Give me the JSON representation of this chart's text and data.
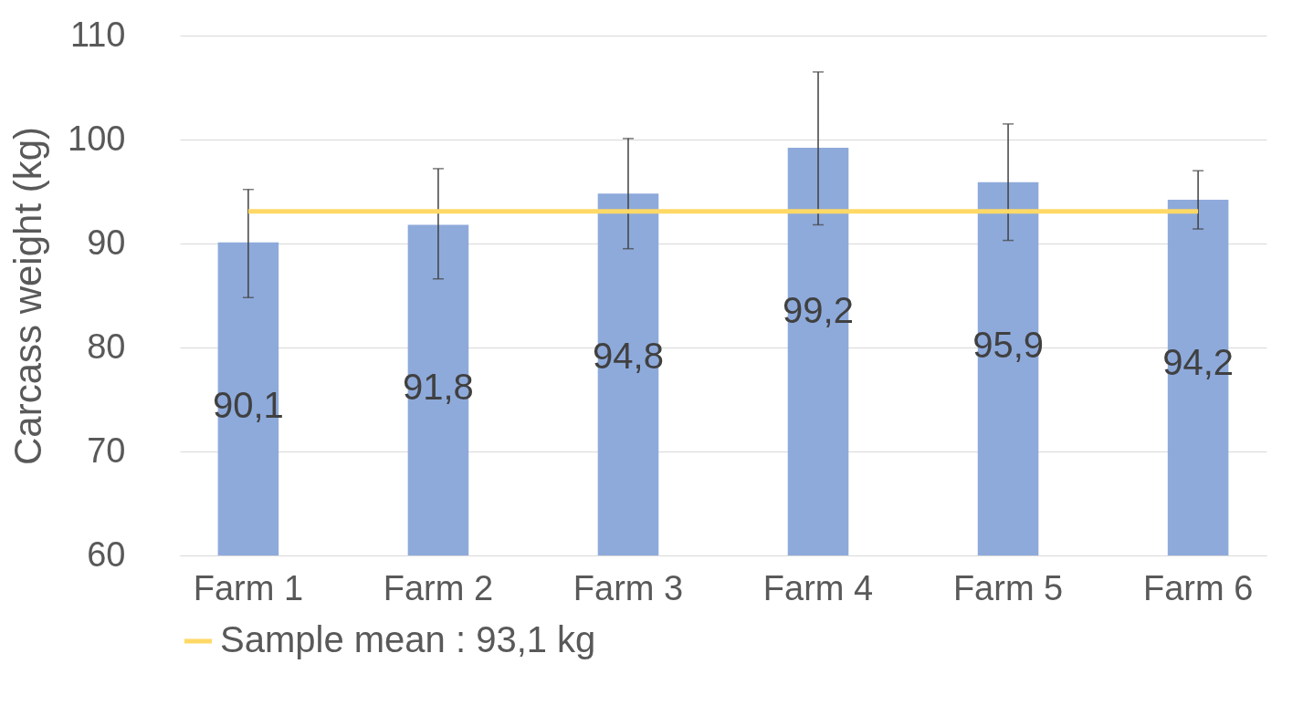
{
  "chart_data": {
    "type": "bar",
    "ylabel": "Carcass weight (kg)",
    "categories": [
      "Farm 1",
      "Farm 2",
      "Farm 3",
      "Farm 4",
      "Farm 5",
      "Farm 6"
    ],
    "series": [
      {
        "color": "#8eaadb",
        "values": [
          90.1,
          91.8,
          94.8,
          99.2,
          95.9,
          94.2
        ],
        "value_labels": [
          "90,1",
          "91,8",
          "94,8",
          "99,2",
          "95,9",
          "94,2"
        ],
        "errors": [
          [
            84.8,
            95.2
          ],
          [
            86.6,
            97.2
          ],
          [
            89.5,
            100.1
          ],
          [
            91.8,
            106.5
          ],
          [
            90.3,
            101.5
          ],
          [
            91.4,
            97.0
          ]
        ]
      },
      {
        "type": "line",
        "name": "Sample mean : 93,1 kg",
        "color": "#ffd966",
        "values": [
          93.1,
          93.1,
          93.1,
          93.1,
          93.1,
          93.1
        ]
      }
    ],
    "ylim": [
      60,
      110
    ],
    "yticks": [
      60,
      70,
      80,
      90,
      100,
      110
    ],
    "grid": "y",
    "legend": "bottom"
  }
}
